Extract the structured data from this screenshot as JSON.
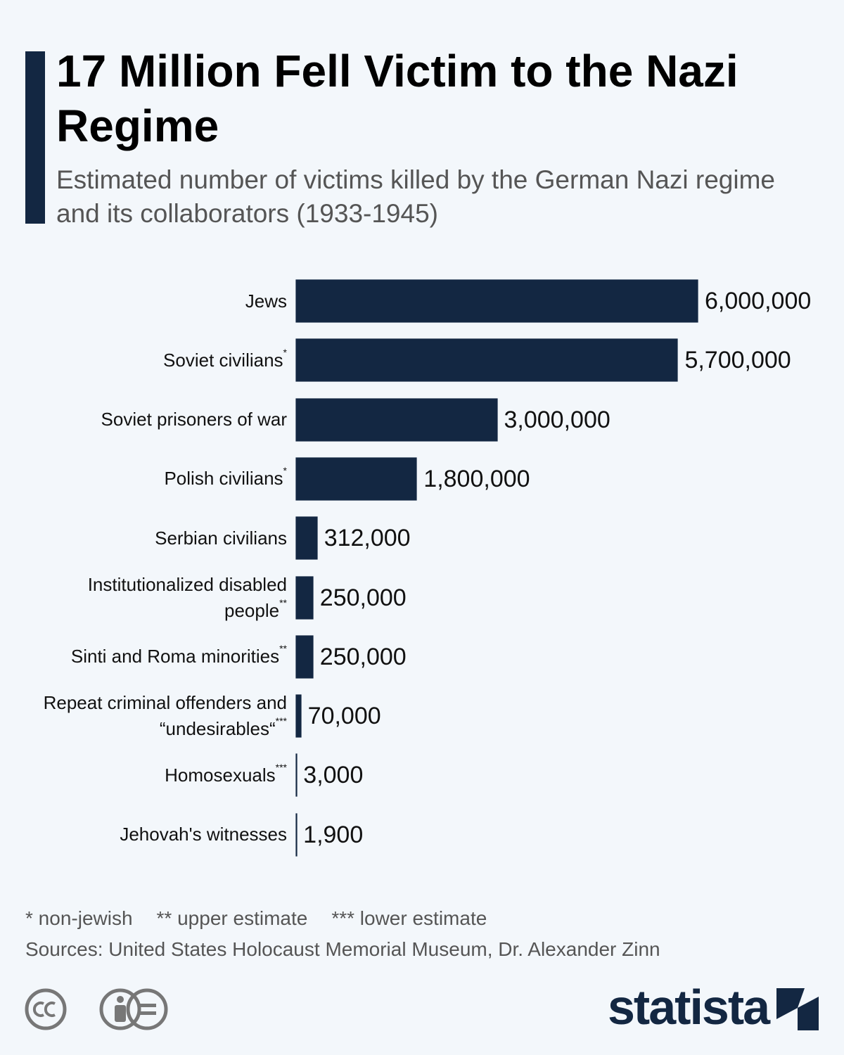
{
  "chart_data": {
    "type": "bar",
    "title": "17 Million Fell Victim to the Nazi Regime",
    "subtitle": "Estimated number of victims killed by the German Nazi regime and its collaborators (1933-1945)",
    "categories": [
      "Jews",
      "Soviet civilians*",
      "Soviet prisoners of war",
      "Polish civilians*",
      "Serbian civilians",
      "Institutionalized disabled people**",
      "Sinti and Roma minorities**",
      "Repeat criminal offenders and “undesirables“***",
      "Homosexuals***",
      "Jehovah's witnesses"
    ],
    "values": [
      6000000,
      5700000,
      3000000,
      1800000,
      312000,
      250000,
      250000,
      70000,
      3000,
      1900
    ],
    "value_labels": [
      "6,000,000",
      "5,700,000",
      "3,000,000",
      "1,800,000",
      "312,000",
      "250,000",
      "250,000",
      "70,000",
      "3,000",
      "1,900"
    ],
    "color": "#132742",
    "notes": [
      "* non-jewish",
      "** upper estimate",
      "*** lower estimate"
    ],
    "source": "Sources: United States Holocaust Memorial Museum, Dr. Alexander Zinn",
    "brand": "statista"
  }
}
